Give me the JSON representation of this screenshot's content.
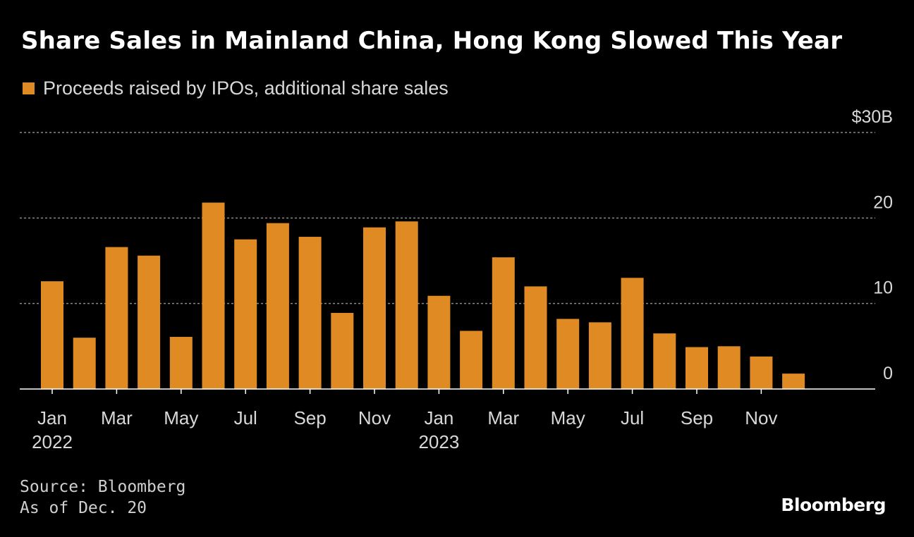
{
  "header": {
    "title": "Share Sales in Mainland China, Hong Kong Slowed This Year",
    "legend_label": "Proceeds raised by IPOs, additional share sales"
  },
  "footer": {
    "source": "Source: Bloomberg",
    "as_of": "As of Dec. 20",
    "brand": "Bloomberg"
  },
  "colors": {
    "bar": "#e08a24",
    "background": "#000000",
    "grid": "#8a8a8a",
    "text": "#d8d8d8"
  },
  "chart_data": {
    "type": "bar",
    "title": "Share Sales in Mainland China, Hong Kong Slowed This Year",
    "ylabel": "",
    "xlabel": "",
    "ylim": [
      0,
      30
    ],
    "yticks": [
      0,
      10,
      20,
      30
    ],
    "ytick_labels": [
      "0",
      "10",
      "20",
      "$30B"
    ],
    "grid": true,
    "categories": [
      "Jan 2022",
      "Feb 2022",
      "Mar 2022",
      "Apr 2022",
      "May 2022",
      "Jun 2022",
      "Jul 2022",
      "Aug 2022",
      "Sep 2022",
      "Oct 2022",
      "Nov 2022",
      "Dec 2022",
      "Jan 2023",
      "Feb 2023",
      "Mar 2023",
      "Apr 2023",
      "May 2023",
      "Jun 2023",
      "Jul 2023",
      "Aug 2023",
      "Sep 2023",
      "Oct 2023",
      "Nov 2023",
      "Dec 2023"
    ],
    "series": [
      {
        "name": "Proceeds raised by IPOs, additional share sales",
        "values": [
          12.6,
          6.0,
          16.6,
          15.6,
          6.1,
          21.8,
          17.5,
          19.4,
          17.8,
          8.9,
          18.9,
          19.6,
          10.9,
          6.8,
          15.4,
          12.0,
          8.2,
          7.8,
          13.0,
          6.5,
          4.9,
          5.0,
          3.8,
          1.8
        ]
      }
    ],
    "xtick_labels": [
      {
        "index": 0,
        "label": "Jan",
        "year": "2022"
      },
      {
        "index": 2,
        "label": "Mar"
      },
      {
        "index": 4,
        "label": "May"
      },
      {
        "index": 6,
        "label": "Jul"
      },
      {
        "index": 8,
        "label": "Sep"
      },
      {
        "index": 10,
        "label": "Nov"
      },
      {
        "index": 12,
        "label": "Jan",
        "year": "2023"
      },
      {
        "index": 14,
        "label": "Mar"
      },
      {
        "index": 16,
        "label": "May"
      },
      {
        "index": 18,
        "label": "Jul"
      },
      {
        "index": 20,
        "label": "Sep"
      },
      {
        "index": 22,
        "label": "Nov"
      }
    ]
  }
}
